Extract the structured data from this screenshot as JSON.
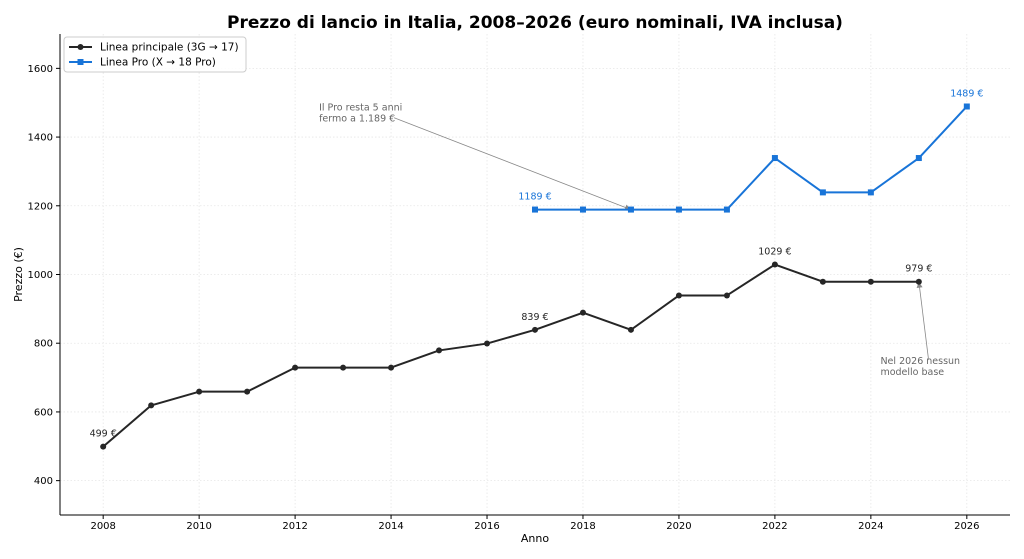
{
  "chart_data": {
    "type": "line",
    "title": "Prezzo di lancio in Italia, 2008–2026 (euro nominali, IVA inclusa)",
    "xlabel": "Anno",
    "ylabel": "Prezzo (€)",
    "xlim": [
      2007.1,
      2026.9
    ],
    "ylim": [
      300,
      1700
    ],
    "xticks": [
      2008,
      2010,
      2012,
      2014,
      2016,
      2018,
      2020,
      2022,
      2024,
      2026
    ],
    "yticks": [
      400,
      600,
      800,
      1000,
      1200,
      1400,
      1600
    ],
    "grid": true,
    "legend_position": "top-left",
    "series": [
      {
        "name": "Linea principale (3G → 17)",
        "color": "#262626",
        "marker": "circle",
        "x": [
          2008,
          2009,
          2010,
          2011,
          2012,
          2013,
          2014,
          2015,
          2016,
          2017,
          2018,
          2019,
          2020,
          2021,
          2022,
          2023,
          2024,
          2025
        ],
        "values": [
          499,
          619,
          659,
          659,
          729,
          729,
          729,
          779,
          799,
          839,
          889,
          839,
          939,
          939,
          1029,
          979,
          979,
          979
        ]
      },
      {
        "name": "Linea Pro (X → 18 Pro)",
        "color": "#1874d8",
        "marker": "square",
        "x": [
          2017,
          2018,
          2019,
          2020,
          2021,
          2022,
          2023,
          2024,
          2025,
          2026
        ],
        "values": [
          1189,
          1189,
          1189,
          1189,
          1189,
          1339,
          1239,
          1239,
          1339,
          1489
        ]
      }
    ],
    "data_labels": [
      {
        "text": "499 €",
        "x": 2008,
        "y": 499,
        "series": 0
      },
      {
        "text": "839 €",
        "x": 2017,
        "y": 839,
        "series": 0
      },
      {
        "text": "1029 €",
        "x": 2022,
        "y": 1029,
        "series": 0
      },
      {
        "text": "979 €",
        "x": 2025,
        "y": 979,
        "series": 0
      },
      {
        "text": "1189 €",
        "x": 2017,
        "y": 1189,
        "series": 1
      },
      {
        "text": "1489 €",
        "x": 2026,
        "y": 1489,
        "series": 1
      }
    ],
    "annotations": [
      {
        "lines": [
          "Il Pro resta 5 anni",
          "fermo a 1.189 €"
        ],
        "text_x": 2012.5,
        "text_y": 1465,
        "target_x": 2019,
        "target_y": 1189
      },
      {
        "lines": [
          "Nel 2026 nessun",
          "modello base"
        ],
        "text_x": 2024.2,
        "text_y": 728,
        "target_x": 2025,
        "target_y": 979
      }
    ]
  }
}
